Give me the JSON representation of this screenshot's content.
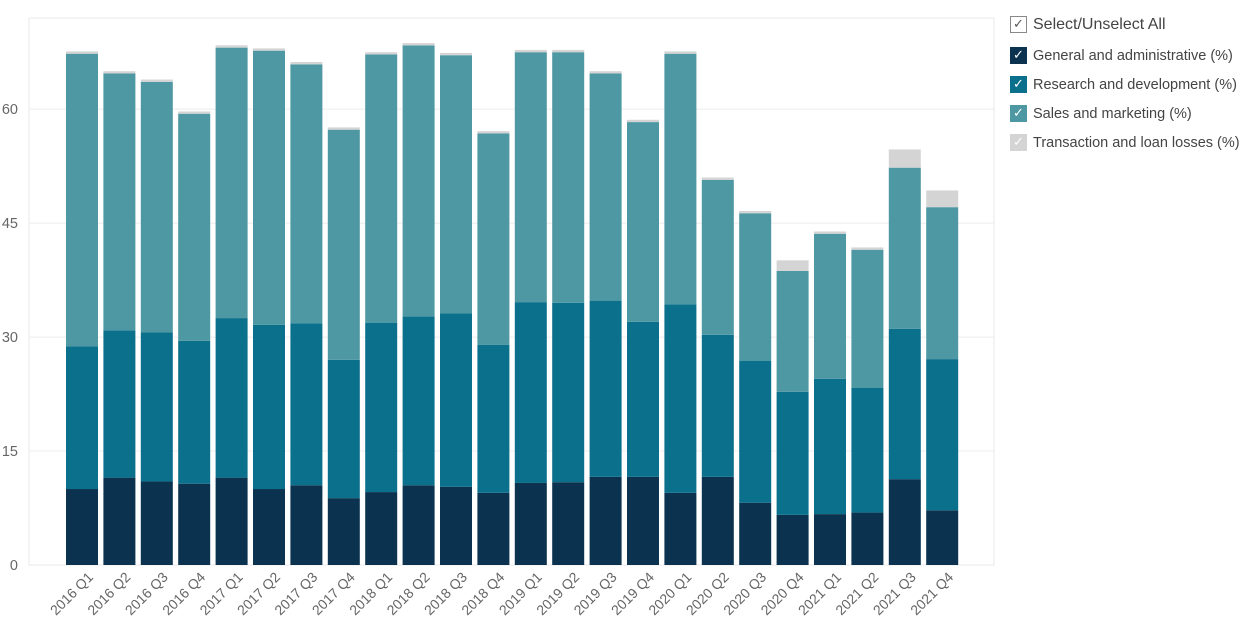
{
  "legend": {
    "select_all_label": "Select/Unselect All",
    "items": [
      {
        "label": "General and administrative (%)",
        "color": "#0b3350",
        "icon": "check-icon"
      },
      {
        "label": "Research and development (%)",
        "color": "#0b708c",
        "icon": "check-icon"
      },
      {
        "label": "Sales and marketing (%)",
        "color": "#4e98a3",
        "icon": "check-icon"
      },
      {
        "label": "Transaction and loan losses (%)",
        "color": "#d4d4d4",
        "icon": "check-icon"
      }
    ],
    "check_glyph": "✓"
  },
  "chart_data": {
    "type": "bar",
    "stacked": true,
    "title": "",
    "xlabel": "",
    "ylabel": "",
    "ylim": [
      0,
      72
    ],
    "yticks": [
      0,
      15,
      30,
      45,
      60
    ],
    "grid": true,
    "legend_position": "right",
    "categories": [
      "2016 Q1",
      "2016 Q2",
      "2016 Q3",
      "2016 Q4",
      "2017 Q1",
      "2017 Q2",
      "2017 Q3",
      "2017 Q4",
      "2018 Q1",
      "2018 Q2",
      "2018 Q3",
      "2018 Q4",
      "2019 Q1",
      "2019 Q2",
      "2019 Q3",
      "2019 Q4",
      "2020 Q1",
      "2020 Q2",
      "2020 Q3",
      "2020 Q4",
      "2021 Q1",
      "2021 Q2",
      "2021 Q3",
      "2021 Q4"
    ],
    "series": [
      {
        "name": "General and administrative (%)",
        "color": "#0b3350",
        "values": [
          10.0,
          11.5,
          11.0,
          10.7,
          11.5,
          10.0,
          10.5,
          8.8,
          9.6,
          10.5,
          10.3,
          9.5,
          10.8,
          10.9,
          11.6,
          11.6,
          9.5,
          11.6,
          8.2,
          6.6,
          6.7,
          6.9,
          11.3,
          7.2
        ]
      },
      {
        "name": "Research and development (%)",
        "color": "#0b708c",
        "values": [
          18.8,
          19.4,
          19.6,
          18.8,
          21.0,
          21.6,
          21.3,
          18.2,
          22.3,
          22.2,
          22.8,
          19.5,
          23.8,
          23.6,
          23.2,
          20.4,
          24.8,
          18.7,
          18.7,
          16.2,
          17.8,
          16.4,
          19.8,
          19.9
        ]
      },
      {
        "name": "Sales and marketing (%)",
        "color": "#4e98a3",
        "values": [
          38.5,
          33.8,
          33.0,
          29.9,
          35.6,
          36.1,
          34.1,
          30.3,
          35.3,
          35.7,
          34.0,
          27.8,
          32.9,
          33.0,
          29.9,
          26.3,
          33.0,
          20.4,
          19.4,
          15.9,
          19.1,
          18.2,
          21.2,
          20.0
        ]
      },
      {
        "name": "Transaction and loan losses (%)",
        "color": "#d4d4d4",
        "values": [
          0.3,
          0.3,
          0.3,
          0.3,
          0.3,
          0.3,
          0.3,
          0.3,
          0.3,
          0.3,
          0.3,
          0.3,
          0.3,
          0.3,
          0.3,
          0.3,
          0.3,
          0.3,
          0.3,
          1.4,
          0.3,
          0.3,
          2.4,
          2.2
        ]
      }
    ]
  }
}
